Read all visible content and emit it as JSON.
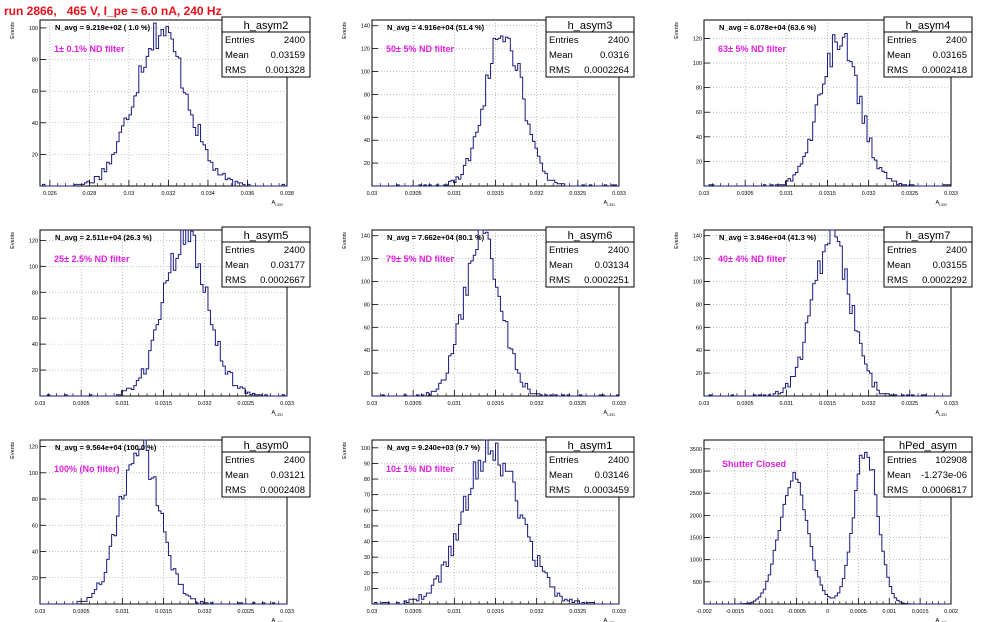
{
  "page_title": "run 2866,   465 V, I_pe ≈ 6.0 nA, 240 Hz",
  "colors": {
    "histogram": "#1a1a80",
    "annotation": "#e020e0",
    "title": "#e8101a",
    "grid": "#9a9a9a"
  },
  "chart_data": [
    {
      "type": "histogram",
      "id": "h_asym2",
      "stats": {
        "title": "h_asym2",
        "rows": [
          [
            "Entries",
            "2400"
          ],
          [
            "Mean",
            "0.03159"
          ],
          [
            "RMS",
            "0.001328"
          ]
        ]
      },
      "navg": "N_avg = 9.219e+02 ( 1.0 %)",
      "filter": "1± 0.1% ND filter",
      "xlabel": "A_LED",
      "ylabel": "Events",
      "xlim": [
        0.0255,
        0.038
      ],
      "ylim": [
        0,
        105
      ],
      "xticks": [
        0.026,
        0.028,
        0.03,
        0.032,
        0.034,
        0.036,
        0.038
      ],
      "xticklabels": [
        "0.026",
        "0.028",
        "0.03",
        "0.032",
        "0.034",
        "0.036",
        "0.038"
      ],
      "yticks": [
        20,
        40,
        60,
        80,
        100
      ],
      "grid": true,
      "mean": 0.03159,
      "rms": 0.001328,
      "entries": 2400,
      "peak": 98
    },
    {
      "type": "histogram",
      "id": "h_asym3",
      "stats": {
        "title": "h_asym3",
        "rows": [
          [
            "Entries",
            "2400"
          ],
          [
            "Mean",
            "0.0316"
          ],
          [
            "RMS",
            "0.0002264"
          ]
        ]
      },
      "navg": "N_avg = 4.916e+04 (51.4 %)",
      "filter": "50± 5% ND filter",
      "xlabel": "A_LED",
      "ylabel": "Events",
      "xlim": [
        0.03,
        0.033
      ],
      "ylim": [
        0,
        145
      ],
      "xticks": [
        0.03,
        0.0305,
        0.031,
        0.0315,
        0.032,
        0.0325,
        0.033
      ],
      "xticklabels": [
        "0.03",
        "0.0305",
        "0.031",
        "0.0315",
        "0.032",
        "0.0325",
        "0.033"
      ],
      "yticks": [
        20,
        40,
        60,
        80,
        100,
        120,
        140
      ],
      "grid": true,
      "mean": 0.0316,
      "rms": 0.0002264,
      "entries": 2400,
      "peak": 135
    },
    {
      "type": "histogram",
      "id": "h_asym4",
      "stats": {
        "title": "h_asym4",
        "rows": [
          [
            "Entries",
            "2400"
          ],
          [
            "Mean",
            "0.03165"
          ],
          [
            "RMS",
            "0.0002418"
          ]
        ]
      },
      "navg": "N_avg = 6.078e+04 (63.6 %)",
      "filter": "63± 5% ND filter",
      "xlabel": "A_LED",
      "ylabel": "Events",
      "xlim": [
        0.03,
        0.033
      ],
      "ylim": [
        0,
        135
      ],
      "xticks": [
        0.03,
        0.0305,
        0.031,
        0.0315,
        0.032,
        0.0325,
        0.033
      ],
      "xticklabels": [
        "0.03",
        "0.0305",
        "0.031",
        "0.0315",
        "0.032",
        "0.0325",
        "0.033"
      ],
      "yticks": [
        20,
        40,
        60,
        80,
        100,
        120
      ],
      "grid": true,
      "mean": 0.03165,
      "rms": 0.0002418,
      "entries": 2400,
      "peak": 118
    },
    {
      "type": "histogram",
      "id": "h_asym5",
      "stats": {
        "title": "h_asym5",
        "rows": [
          [
            "Entries",
            "2400"
          ],
          [
            "Mean",
            "0.03177"
          ],
          [
            "RMS",
            "0.0002667"
          ]
        ]
      },
      "navg": "N_avg = 2.511e+04 (26.3 %)",
      "filter": "25± 2.5% ND filter",
      "xlabel": "A_LED",
      "ylabel": "Events",
      "xlim": [
        0.03,
        0.033
      ],
      "ylim": [
        0,
        128
      ],
      "xticks": [
        0.03,
        0.0305,
        0.031,
        0.0315,
        0.032,
        0.0325,
        0.033
      ],
      "xticklabels": [
        "0.03",
        "0.0305",
        "0.031",
        "0.0315",
        "0.032",
        "0.0325",
        "0.033"
      ],
      "yticks": [
        20,
        40,
        60,
        80,
        100,
        120
      ],
      "grid": true,
      "mean": 0.03177,
      "rms": 0.0002667,
      "entries": 2400,
      "peak": 122
    },
    {
      "type": "histogram",
      "id": "h_asym6",
      "stats": {
        "title": "h_asym6",
        "rows": [
          [
            "Entries",
            "2400"
          ],
          [
            "Mean",
            "0.03134"
          ],
          [
            "RMS",
            "0.0002251"
          ]
        ]
      },
      "navg": "N_avg = 7.662e+04 (80.1 %)",
      "filter": "79± 5% ND filter",
      "xlabel": "A_LED",
      "ylabel": "Events",
      "xlim": [
        0.03,
        0.033
      ],
      "ylim": [
        0,
        145
      ],
      "xticks": [
        0.03,
        0.0305,
        0.031,
        0.0315,
        0.032,
        0.0325,
        0.033
      ],
      "xticklabels": [
        "0.03",
        "0.0305",
        "0.031",
        "0.0315",
        "0.032",
        "0.0325",
        "0.033"
      ],
      "yticks": [
        20,
        40,
        60,
        80,
        100,
        120,
        140
      ],
      "grid": true,
      "mean": 0.03134,
      "rms": 0.0002251,
      "entries": 2400,
      "peak": 138
    },
    {
      "type": "histogram",
      "id": "h_asym7",
      "stats": {
        "title": "h_asym7",
        "rows": [
          [
            "Entries",
            "2400"
          ],
          [
            "Mean",
            "0.03155"
          ],
          [
            "RMS",
            "0.0002292"
          ]
        ]
      },
      "navg": "N_avg = 3.946e+04 (41.3 %)",
      "filter": "40± 4% ND filter",
      "xlabel": "A_LED",
      "ylabel": "Events",
      "xlim": [
        0.03,
        0.033
      ],
      "ylim": [
        0,
        145
      ],
      "xticks": [
        0.03,
        0.0305,
        0.031,
        0.0315,
        0.032,
        0.0325,
        0.033
      ],
      "xticklabels": [
        "0.03",
        "0.0305",
        "0.031",
        "0.0315",
        "0.032",
        "0.0325",
        "0.033"
      ],
      "yticks": [
        20,
        40,
        60,
        80,
        100,
        120,
        140
      ],
      "grid": true,
      "mean": 0.03155,
      "rms": 0.0002292,
      "entries": 2400,
      "peak": 138
    },
    {
      "type": "histogram",
      "id": "h_asym0",
      "stats": {
        "title": "h_asym0",
        "rows": [
          [
            "Entries",
            "2400"
          ],
          [
            "Mean",
            "0.03121"
          ],
          [
            "RMS",
            "0.0002408"
          ]
        ]
      },
      "navg": "N_avg = 9.564e+04 (100.0 %)",
      "filter": "100% (No filter)",
      "xlabel": "A_LED",
      "ylabel": "Events",
      "xlim": [
        0.03,
        0.033
      ],
      "ylim": [
        0,
        125
      ],
      "xticks": [
        0.03,
        0.0305,
        0.031,
        0.0315,
        0.032,
        0.0325,
        0.033
      ],
      "xticklabels": [
        "0.03",
        "0.0305",
        "0.031",
        "0.0315",
        "0.032",
        "0.0325",
        "0.033"
      ],
      "yticks": [
        20,
        40,
        60,
        80,
        100,
        120
      ],
      "grid": true,
      "mean": 0.03121,
      "rms": 0.0002408,
      "entries": 2400,
      "peak": 120
    },
    {
      "type": "histogram",
      "id": "h_asym1",
      "stats": {
        "title": "h_asym1",
        "rows": [
          [
            "Entries",
            "2400"
          ],
          [
            "Mean",
            "0.03146"
          ],
          [
            "RMS",
            "0.0003459"
          ]
        ]
      },
      "navg": "N_avg = 9.240e+03 (9.7 %)",
      "filter": "10± 1% ND filter",
      "xlabel": "A_LED",
      "ylabel": "Events",
      "xlim": [
        0.03,
        0.033
      ],
      "ylim": [
        0,
        105
      ],
      "xticks": [
        0.03,
        0.0305,
        0.031,
        0.0315,
        0.032,
        0.0325,
        0.033
      ],
      "xticklabels": [
        "0.03",
        "0.0305",
        "0.031",
        "0.0315",
        "0.032",
        "0.0325",
        "0.033"
      ],
      "yticks": [
        10,
        20,
        30,
        40,
        50,
        60,
        70,
        80,
        90,
        100
      ],
      "grid": true,
      "mean": 0.03146,
      "rms": 0.0003459,
      "entries": 2400,
      "peak": 98
    },
    {
      "type": "histogram",
      "id": "hPed_asym",
      "stats": {
        "title": "hPed_asym",
        "rows": [
          [
            "Entries",
            "102908"
          ],
          [
            "Mean",
            "-1.273e-06"
          ],
          [
            "RMS",
            "0.0006817"
          ]
        ]
      },
      "navg": "",
      "filter": "Shutter Closed",
      "xlabel": "A_LED",
      "ylabel": "",
      "xlim": [
        -0.002,
        0.002
      ],
      "ylim": [
        0,
        3700
      ],
      "xticks": [
        -0.002,
        -0.0015,
        -0.001,
        -0.0005,
        0,
        0.0005,
        0.001,
        0.0015,
        0.002
      ],
      "xticklabels": [
        "-0.002",
        "-0.0015",
        "-0.001",
        "-0.0005",
        "0",
        "0.0005",
        "0.001",
        "0.0015",
        "0.002"
      ],
      "yticks": [
        500,
        1000,
        1500,
        2000,
        2500,
        3000,
        3500
      ],
      "grid": true,
      "bimodal": [
        [
          -0.00055,
          0.00023,
          2850
        ],
        [
          0.00062,
          0.00019,
          3500
        ]
      ]
    }
  ]
}
